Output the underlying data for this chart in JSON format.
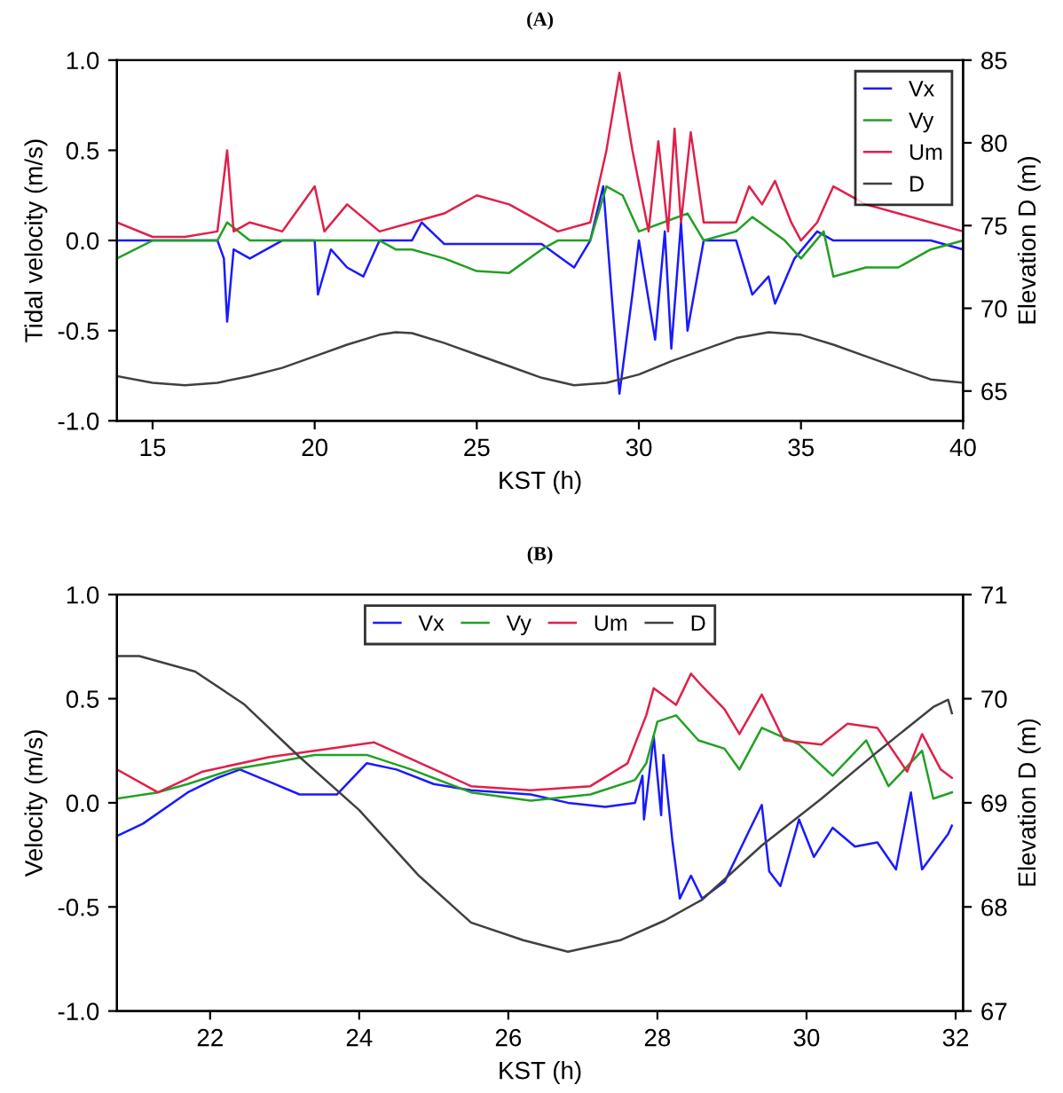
{
  "chart_data": [
    {
      "type": "line",
      "title": "(A)",
      "xlabel": "KST (h)",
      "ylabel": "Tidal velocity (m/s)",
      "y2label": "Elevation D (m)",
      "legend": "top right",
      "grid": false,
      "xlim": [
        13.9,
        40
      ],
      "xticks": [
        15,
        20,
        25,
        30,
        35,
        40
      ],
      "ylim": [
        -1,
        1
      ],
      "yticks": [
        {
          "value": -1,
          "label": "-1.0"
        },
        {
          "value": -0.5,
          "label": "-0.5"
        },
        {
          "value": 0,
          "label": "0.0"
        },
        {
          "value": 0.5,
          "label": "0.5"
        },
        {
          "value": 1,
          "label": "1.0"
        }
      ],
      "y2lim": [
        63.2,
        85
      ],
      "y2ticks": [
        65,
        70,
        75,
        80,
        85
      ],
      "series": [
        {
          "name": "Vx",
          "color": "#1a1aff",
          "x": [
            13.9,
            15,
            16,
            17,
            17.2,
            17.3,
            17.5,
            18,
            19,
            20,
            20.1,
            20.5,
            21,
            21.5,
            22,
            23,
            23.3,
            24,
            25,
            26,
            27,
            28,
            28.5,
            28.9,
            29.4,
            29.8,
            30,
            30.5,
            30.8,
            31,
            31.3,
            31.5,
            31.8,
            32,
            33,
            33.5,
            34,
            34.2,
            34.8,
            35.5,
            36,
            37,
            38,
            39,
            40
          ],
          "values": [
            0,
            0,
            0,
            0,
            -0.1,
            -0.45,
            -0.05,
            -0.1,
            0,
            0,
            -0.3,
            -0.05,
            -0.15,
            -0.2,
            0,
            0,
            0.1,
            -0.02,
            -0.02,
            -0.02,
            -0.02,
            -0.15,
            0,
            0.3,
            -0.85,
            -0.3,
            0,
            -0.55,
            0.05,
            -0.6,
            0.1,
            -0.5,
            -0.2,
            0,
            0,
            -0.3,
            -0.2,
            -0.35,
            -0.1,
            0.05,
            0,
            0,
            0,
            0,
            -0.05
          ]
        },
        {
          "name": "Vy",
          "color": "#22a022",
          "x": [
            13.9,
            15,
            17,
            17.3,
            18,
            20,
            22,
            22.5,
            23,
            24,
            25,
            26,
            27,
            27.5,
            28.5,
            29,
            29.5,
            30,
            31.5,
            32,
            33,
            33.5,
            34.5,
            35,
            35.7,
            36,
            37,
            38,
            39,
            40
          ],
          "values": [
            -0.1,
            0,
            0,
            0.1,
            0,
            0,
            0,
            -0.05,
            -0.05,
            -0.1,
            -0.17,
            -0.18,
            -0.05,
            0,
            0,
            0.3,
            0.25,
            0.05,
            0.15,
            0,
            0.05,
            0.13,
            0,
            -0.1,
            0.05,
            -0.2,
            -0.15,
            -0.15,
            -0.05,
            0
          ]
        },
        {
          "name": "Um",
          "color": "#e0204a",
          "x": [
            13.9,
            15,
            16,
            17,
            17.3,
            17.5,
            18,
            19,
            20,
            20.3,
            21,
            22,
            23,
            24,
            25,
            26,
            27,
            27.5,
            28.5,
            29,
            29.4,
            29.8,
            30.3,
            30.6,
            30.9,
            31.1,
            31.3,
            31.6,
            32,
            33,
            33.4,
            33.8,
            34.2,
            34.7,
            35,
            35.5,
            36,
            37,
            38,
            39,
            40
          ],
          "values": [
            0.1,
            0.02,
            0.02,
            0.05,
            0.5,
            0.05,
            0.1,
            0.05,
            0.3,
            0.05,
            0.2,
            0.05,
            0.1,
            0.15,
            0.25,
            0.2,
            0.1,
            0.05,
            0.1,
            0.5,
            0.93,
            0.5,
            0.05,
            0.55,
            0.05,
            0.62,
            0.1,
            0.6,
            0.1,
            0.1,
            0.3,
            0.2,
            0.33,
            0.1,
            0,
            0.1,
            0.3,
            0.2,
            0.15,
            0.1,
            0.05
          ]
        },
        {
          "name": "D",
          "color": "#404040",
          "axis": "y2",
          "x": [
            13.9,
            15,
            16,
            17,
            18,
            19,
            20,
            21,
            22,
            22.5,
            23,
            24,
            25,
            26,
            27,
            28,
            29,
            30,
            31,
            32,
            33,
            34,
            35,
            36,
            37,
            38,
            39,
            40
          ],
          "values": [
            65.9,
            65.5,
            65.35,
            65.5,
            65.9,
            66.4,
            67.1,
            67.8,
            68.4,
            68.55,
            68.5,
            67.9,
            67.2,
            66.5,
            65.8,
            65.35,
            65.5,
            66,
            66.8,
            67.5,
            68.2,
            68.55,
            68.4,
            67.8,
            67.1,
            66.4,
            65.7,
            65.5
          ]
        }
      ]
    },
    {
      "type": "line",
      "title": "(B)",
      "xlabel": "KST (h)",
      "ylabel": "Velocity (m/s)",
      "y2label": "Elevation D (m)",
      "legend": "top",
      "grid": false,
      "xlim": [
        20.75,
        32.1
      ],
      "xticks": [
        22,
        24,
        26,
        28,
        30,
        32
      ],
      "ylim": [
        -1,
        1
      ],
      "yticks": [
        {
          "value": -1,
          "label": "-1.0"
        },
        {
          "value": -0.5,
          "label": "-0.5"
        },
        {
          "value": 0,
          "label": "0.0"
        },
        {
          "value": 0.5,
          "label": "0.5"
        },
        {
          "value": 1,
          "label": "1.0"
        }
      ],
      "y2lim": [
        67,
        71
      ],
      "y2ticks": [
        67,
        68,
        69,
        70,
        71
      ],
      "series": [
        {
          "name": "Vx",
          "color": "#1a1aff",
          "x": [
            20.75,
            21.1,
            21.7,
            22.1,
            22.4,
            22.8,
            23.2,
            23.7,
            24.1,
            24.5,
            25,
            25.5,
            26.3,
            26.8,
            27.3,
            27.7,
            27.8,
            27.82,
            27.95,
            28.05,
            28.08,
            28.2,
            28.3,
            28.45,
            28.6,
            28.9,
            29.25,
            29.4,
            29.5,
            29.65,
            29.9,
            30.1,
            30.35,
            30.65,
            30.95,
            31.2,
            31.4,
            31.55,
            31.9,
            31.95
          ],
          "values": [
            -0.16,
            -0.1,
            0.05,
            0.12,
            0.16,
            0.1,
            0.04,
            0.04,
            0.19,
            0.16,
            0.09,
            0.06,
            0.04,
            0,
            -0.02,
            0,
            0.13,
            -0.08,
            0.32,
            -0.06,
            0.23,
            -0.18,
            -0.46,
            -0.35,
            -0.46,
            -0.38,
            -0.12,
            -0.01,
            -0.33,
            -0.4,
            -0.08,
            -0.26,
            -0.12,
            -0.21,
            -0.19,
            -0.32,
            0.05,
            -0.32,
            -0.15,
            -0.11
          ]
        },
        {
          "name": "Vy",
          "color": "#22a022",
          "x": [
            20.75,
            21.3,
            21.7,
            22.3,
            22.8,
            23.4,
            24.1,
            24.7,
            25.5,
            26.3,
            27.1,
            27.7,
            27.85,
            28,
            28.25,
            28.55,
            28.9,
            29.1,
            29.4,
            29.9,
            30.35,
            30.8,
            31.1,
            31.55,
            31.7,
            31.95
          ],
          "values": [
            0.02,
            0.05,
            0.09,
            0.16,
            0.19,
            0.23,
            0.23,
            0.16,
            0.05,
            0.01,
            0.04,
            0.11,
            0.19,
            0.39,
            0.42,
            0.3,
            0.26,
            0.16,
            0.36,
            0.28,
            0.13,
            0.3,
            0.08,
            0.25,
            0.02,
            0.05
          ]
        },
        {
          "name": "Um",
          "color": "#e0204a",
          "x": [
            20.75,
            21.3,
            21.9,
            22.8,
            23.4,
            24.2,
            24.7,
            25.5,
            26.3,
            27.1,
            27.6,
            27.85,
            27.95,
            28.25,
            28.45,
            28.6,
            28.9,
            29.1,
            29.4,
            29.7,
            30.2,
            30.55,
            30.95,
            31.35,
            31.55,
            31.8,
            31.95
          ],
          "values": [
            0.16,
            0.05,
            0.15,
            0.22,
            0.25,
            0.29,
            0.21,
            0.08,
            0.06,
            0.08,
            0.19,
            0.42,
            0.55,
            0.47,
            0.62,
            0.56,
            0.45,
            0.33,
            0.52,
            0.3,
            0.28,
            0.38,
            0.36,
            0.15,
            0.33,
            0.16,
            0.12
          ]
        },
        {
          "name": "D",
          "color": "#404040",
          "axis": "y2",
          "x": [
            20.75,
            21.05,
            21.8,
            22.45,
            23.2,
            24,
            24.8,
            25.5,
            26.2,
            26.8,
            27.5,
            28.1,
            28.6,
            29.4,
            30.2,
            30.95,
            31.7,
            31.9,
            31.95
          ],
          "values": [
            70.41,
            70.41,
            70.26,
            69.95,
            69.44,
            68.93,
            68.3,
            67.85,
            67.68,
            67.57,
            67.68,
            67.87,
            68.07,
            68.59,
            69.04,
            69.49,
            69.92,
            69.99,
            69.86
          ]
        }
      ]
    }
  ]
}
